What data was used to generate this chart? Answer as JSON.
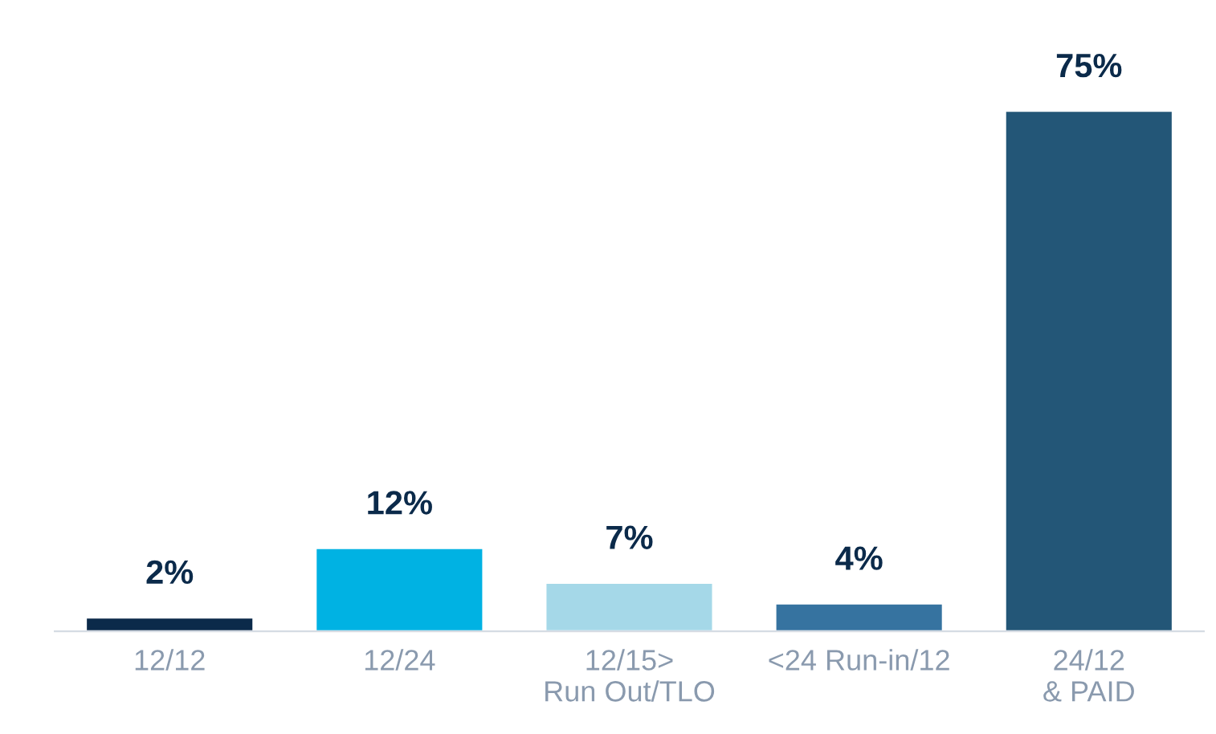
{
  "chart_data": {
    "type": "bar",
    "categories": [
      "12/12",
      "12/24",
      "12/15>\nRun Out/TLO",
      "<24 Run-in/12",
      "24/12\n& PAID"
    ],
    "values": [
      2,
      12,
      7,
      4,
      75
    ],
    "colors": [
      "#0b2a4a",
      "#00b2e3",
      "#a5d8e8",
      "#3673a0",
      "#235677"
    ],
    "value_labels": [
      "2%",
      "12%",
      "7%",
      "4%",
      "75%"
    ],
    "grid": false,
    "legend": false
  }
}
